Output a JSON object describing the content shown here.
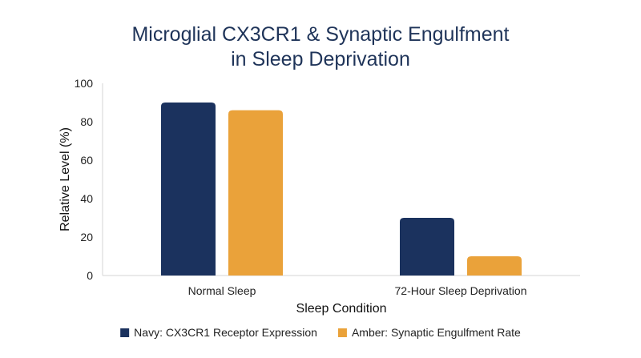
{
  "chart_data": {
    "type": "bar",
    "title_line1": "Microglial CX3CR1 & Synaptic Engulfment",
    "title_line2": "in Sleep Deprivation",
    "xlabel": "Sleep Condition",
    "ylabel": "Relative Level (%)",
    "ylim": [
      0,
      100
    ],
    "yticks": [
      0,
      20,
      40,
      60,
      80,
      100
    ],
    "categories": [
      "Normal Sleep",
      "72-Hour Sleep Deprivation"
    ],
    "series": [
      {
        "name": "Navy: CX3CR1 Receptor Expression",
        "values": [
          90,
          30
        ],
        "color": "#1b325e"
      },
      {
        "name": "Amber: Synaptic Engulfment Rate",
        "values": [
          86,
          10
        ],
        "color": "#ea a23a"
      }
    ],
    "grid": false,
    "legend_position": "bottom-center"
  }
}
